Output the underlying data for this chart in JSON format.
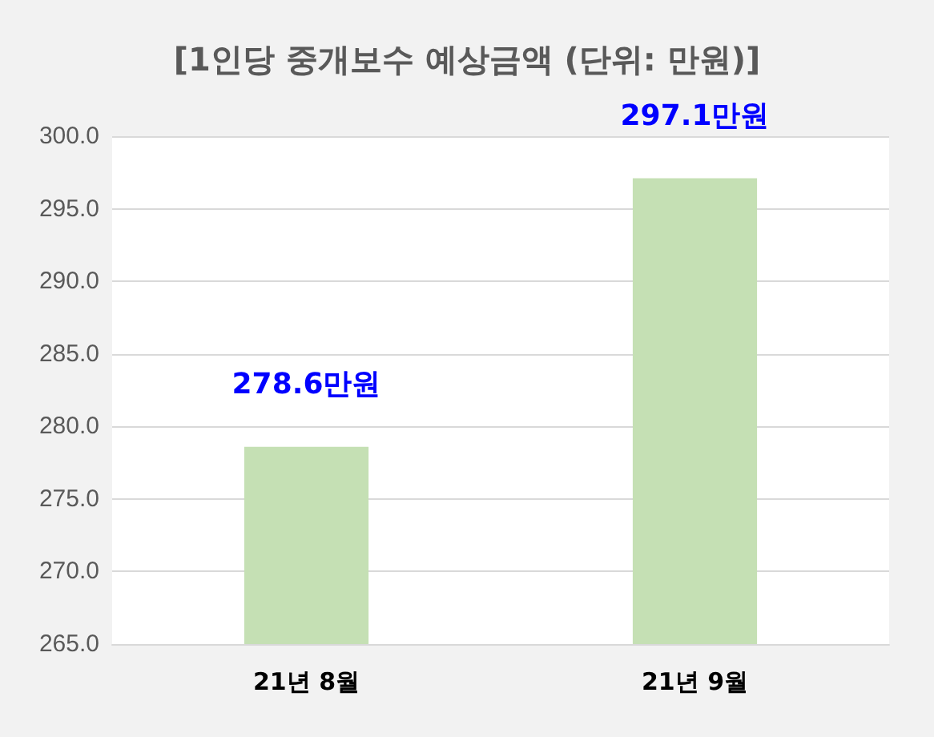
{
  "chart_data": {
    "type": "bar",
    "title": "[1인당 중개보수 예상금액 (단위: 만원)]",
    "categories": [
      "21년 8월",
      "21년 9월"
    ],
    "values": [
      278.6,
      297.1
    ],
    "value_labels": [
      "278.6만원",
      "297.1만원"
    ],
    "color": "#c5e0b4",
    "ylim": [
      265,
      300
    ],
    "yticks": [
      {
        "value": 265,
        "label": "265.0"
      },
      {
        "value": 270,
        "label": "270.0"
      },
      {
        "value": 275,
        "label": "275.0"
      },
      {
        "value": 280,
        "label": "280.0"
      },
      {
        "value": 285,
        "label": "285.0"
      },
      {
        "value": 290,
        "label": "290.0"
      },
      {
        "value": 295,
        "label": "295.0"
      },
      {
        "value": 300,
        "label": "300.0"
      }
    ],
    "grid": "y"
  }
}
